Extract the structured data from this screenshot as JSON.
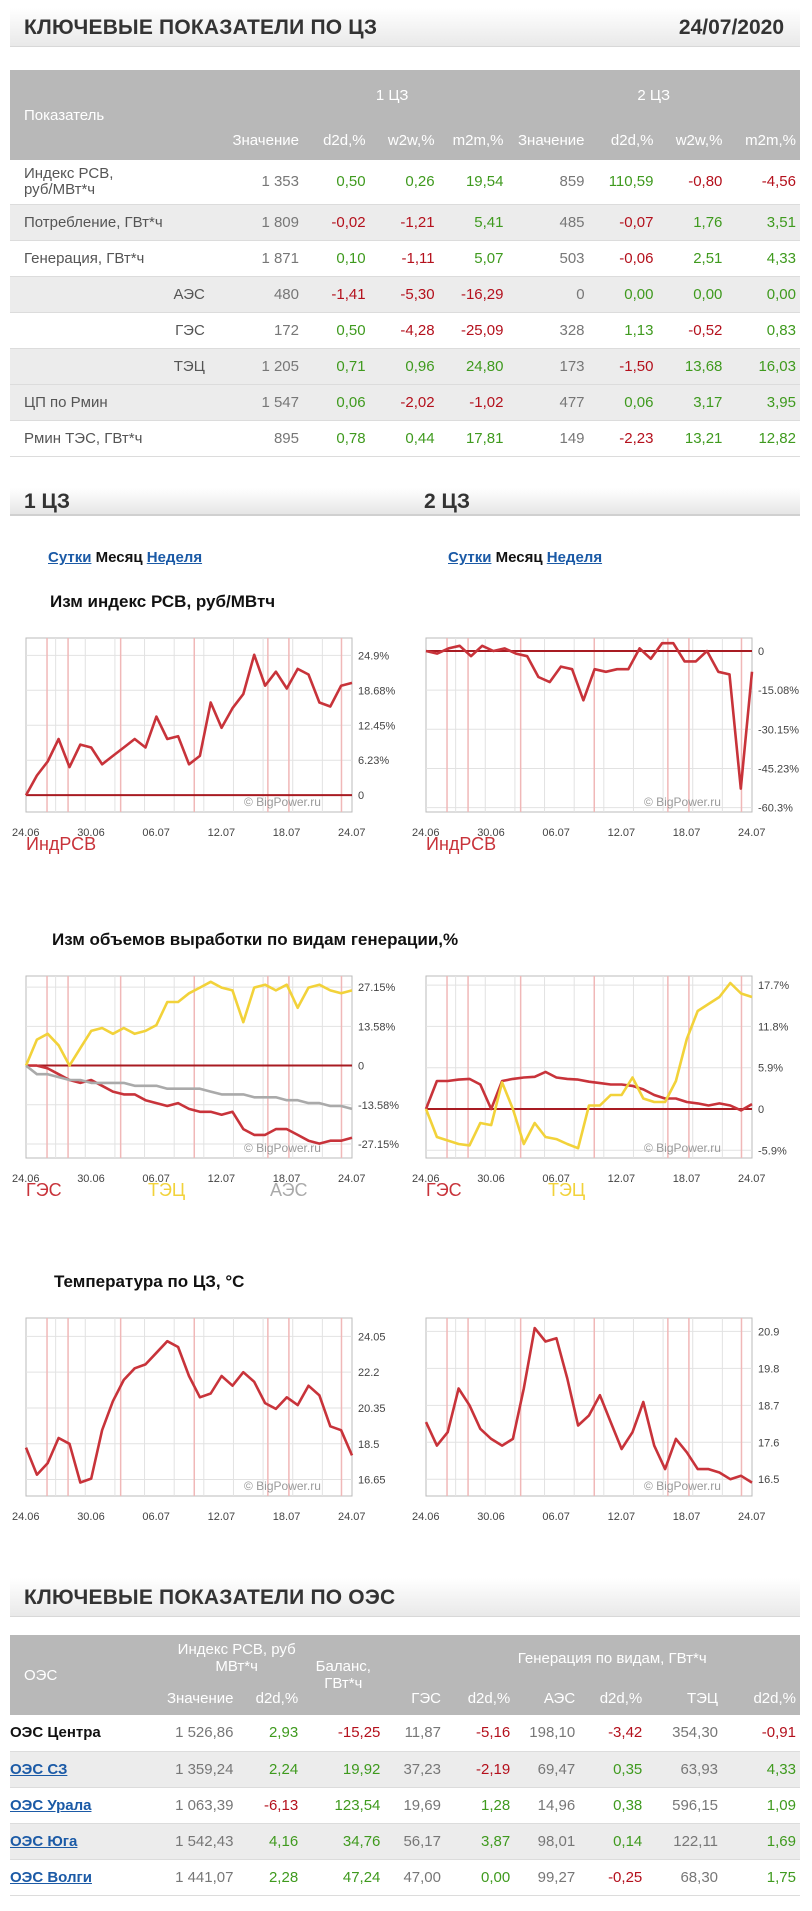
{
  "header": {
    "title": "КЛЮЧЕВЫЕ ПОКАЗАТЕЛИ ПО ЦЗ",
    "date": "24/07/2020"
  },
  "kp_table": {
    "col_indicator": "Показатель",
    "zone1": "1 ЦЗ",
    "zone2": "2 ЦЗ",
    "sub": [
      "Значение",
      "d2d,%",
      "w2w,%",
      "m2m,%"
    ],
    "rows": [
      {
        "label": "Индекс РСВ, руб/МВт*ч",
        "l1": "Индекс РСВ,",
        "l2": "руб/МВт*ч",
        "indent": false,
        "z1": [
          "1 353",
          "0,50",
          "0,26",
          "19,54"
        ],
        "z2": [
          "859",
          "110,59",
          "-0,80",
          "-4,56"
        ]
      },
      {
        "label": "Потребление, ГВт*ч",
        "indent": false,
        "z1": [
          "1 809",
          "-0,02",
          "-1,21",
          "5,41"
        ],
        "z2": [
          "485",
          "-0,07",
          "1,76",
          "3,51"
        ]
      },
      {
        "label": "Генерация, ГВт*ч",
        "indent": false,
        "z1": [
          "1 871",
          "0,10",
          "-1,11",
          "5,07"
        ],
        "z2": [
          "503",
          "-0,06",
          "2,51",
          "4,33"
        ]
      },
      {
        "label": "АЭС",
        "indent": true,
        "z1": [
          "480",
          "-1,41",
          "-5,30",
          "-16,29"
        ],
        "z2": [
          "0",
          "0,00",
          "0,00",
          "0,00"
        ]
      },
      {
        "label": "ГЭС",
        "indent": true,
        "z1": [
          "172",
          "0,50",
          "-4,28",
          "-25,09"
        ],
        "z2": [
          "328",
          "1,13",
          "-0,52",
          "0,83"
        ]
      },
      {
        "label": "ТЭЦ",
        "indent": true,
        "z1": [
          "1 205",
          "0,71",
          "0,96",
          "24,80"
        ],
        "z2": [
          "173",
          "-1,50",
          "13,68",
          "16,03"
        ]
      },
      {
        "label": "ЦП по Рмин",
        "indent": false,
        "z1": [
          "1 547",
          "0,06",
          "-2,02",
          "-1,02"
        ],
        "z2": [
          "477",
          "0,06",
          "3,17",
          "3,95"
        ]
      },
      {
        "label": "Рмин ТЭС, ГВт*ч",
        "indent": false,
        "z1": [
          "895",
          "0,78",
          "0,44",
          "17,81"
        ],
        "z2": [
          "149",
          "-2,23",
          "13,21",
          "12,82"
        ]
      }
    ]
  },
  "zones": {
    "z1_title": "1 ЦЗ",
    "z2_title": "2 ЦЗ",
    "tabs": [
      "Сутки",
      "Месяц",
      "Неделя"
    ],
    "active_tab": "Месяц"
  },
  "chart_titles": {
    "rsv": "Изм индекс РСВ, руб/МВтч",
    "gen": "Изм объемов выработки по видам генерации,%",
    "temp": "Температура по ЦЗ, °C"
  },
  "watermark": "© BigPower.ru",
  "colors": {
    "red": "#c8333a",
    "yellow": "#f2d23a",
    "gray": "#aaaaaa",
    "green": "#3f9a1e",
    "darkred": "#b4101c",
    "grid": "#e2e2e2",
    "vline": "#f0b8b8"
  },
  "x_ticks": [
    "24.06",
    "30.06",
    "06.07",
    "12.07",
    "18.07",
    "24.07"
  ],
  "chart_data": [
    {
      "id": "rsv1",
      "type": "line",
      "title": "Изм индекс РСВ, руб/МВтч",
      "ylim": [
        -3,
        28
      ],
      "yticks": [
        24.9,
        18.68,
        12.45,
        6.23,
        0
      ],
      "ytick_labels": [
        "24.9%",
        "18.68%",
        "12.45%",
        "6.23%",
        "0"
      ],
      "zero_line": 0,
      "legend": [
        {
          "name": "ИндРСВ",
          "color": "#c8333a"
        }
      ],
      "series": [
        {
          "name": "ИндРСВ",
          "color": "#c8333a",
          "values": [
            0,
            3.5,
            6,
            10,
            5,
            9,
            8.5,
            5.5,
            7,
            8.5,
            10,
            8.5,
            14,
            10,
            10.5,
            5.5,
            7,
            16.5,
            12,
            15.5,
            18,
            25,
            19.5,
            22,
            19,
            22.5,
            21.5,
            16.5,
            15.8,
            19.5,
            20
          ]
        }
      ]
    },
    {
      "id": "rsv2",
      "type": "line",
      "title": "Изм индекс РСВ, руб/МВтч",
      "ylim": [
        -62,
        5
      ],
      "yticks": [
        0,
        -15.08,
        -30.15,
        -45.23,
        -60.3
      ],
      "ytick_labels": [
        "0",
        "-15.08%",
        "-30.15%",
        "-45.23%",
        "-60.3%"
      ],
      "zero_line": 0,
      "legend": [
        {
          "name": "ИндРСВ",
          "color": "#c8333a"
        }
      ],
      "series": [
        {
          "name": "ИндРСВ",
          "color": "#c8333a",
          "values": [
            0,
            -1,
            1,
            2,
            -2,
            2,
            0,
            1,
            -1,
            -2,
            -10,
            -12,
            -6,
            -7,
            -19,
            -7,
            -8,
            -7,
            -7,
            1,
            -3,
            3,
            3,
            -4,
            -4,
            0,
            -8,
            -9,
            -53,
            -8
          ]
        }
      ]
    },
    {
      "id": "gen1",
      "type": "line",
      "title": "Изм объемов выработки по видам генерации,%",
      "ylim": [
        -32,
        31
      ],
      "yticks": [
        27.15,
        13.58,
        0,
        -13.58,
        -27.15
      ],
      "ytick_labels": [
        "27.15%",
        "13.58%",
        "0",
        "-13.58%",
        "-27.15%"
      ],
      "zero_line": 0,
      "legend": [
        {
          "name": "ГЭС",
          "color": "#c8333a"
        },
        {
          "name": "ТЭЦ",
          "color": "#f2d23a"
        },
        {
          "name": "АЭС",
          "color": "#aaaaaa"
        }
      ],
      "series": [
        {
          "name": "ГЭС",
          "color": "#c8333a",
          "values": [
            0,
            0,
            -1,
            -3,
            -5,
            -6,
            -5,
            -7,
            -9,
            -10,
            -10,
            -12,
            -13,
            -14,
            -13,
            -15,
            -16,
            -16,
            -17,
            -16,
            -22,
            -24,
            -24,
            -22,
            -22,
            -24,
            -26,
            -27,
            -26,
            -26,
            -25
          ]
        },
        {
          "name": "ТЭЦ",
          "color": "#f2d23a",
          "values": [
            0,
            9,
            11,
            7,
            0,
            6,
            12,
            13,
            11,
            13,
            11,
            12,
            14,
            22,
            22,
            25,
            27,
            29,
            27,
            26,
            15,
            27,
            28,
            26,
            28,
            20,
            27,
            28,
            26,
            25,
            26
          ]
        },
        {
          "name": "АЭС",
          "color": "#aaaaaa",
          "values": [
            0,
            -3,
            -3,
            -4,
            -5,
            -5,
            -6,
            -6,
            -6,
            -6,
            -7,
            -7,
            -7,
            -8,
            -8,
            -8,
            -8,
            -9,
            -10,
            -10,
            -10,
            -11,
            -11,
            -11,
            -12,
            -12,
            -13,
            -13,
            -14,
            -14,
            -15
          ]
        }
      ]
    },
    {
      "id": "gen2",
      "type": "line",
      "title": "Изм объемов выработки по видам генерации,%",
      "ylim": [
        -7,
        19
      ],
      "yticks": [
        17.7,
        11.8,
        5.9,
        0,
        -5.9
      ],
      "ytick_labels": [
        "17.7%",
        "11.8%",
        "5.9%",
        "0",
        "-5.9%"
      ],
      "zero_line": 0,
      "legend": [
        {
          "name": "ГЭС",
          "color": "#c8333a"
        },
        {
          "name": "ТЭЦ",
          "color": "#f2d23a"
        }
      ],
      "series": [
        {
          "name": "ГЭС",
          "color": "#c8333a",
          "values": [
            0,
            4,
            4,
            4.2,
            4.3,
            3.5,
            0,
            4,
            4.3,
            4.5,
            4.6,
            5.3,
            4.5,
            4.3,
            4.2,
            3.9,
            3.7,
            3.5,
            3.5,
            3.3,
            2.8,
            2,
            1.5,
            1.5,
            1,
            0.8,
            0.5,
            0.8,
            0.5,
            -0.2,
            0.7
          ]
        },
        {
          "name": "ТЭЦ",
          "color": "#f2d23a",
          "values": [
            0,
            -4,
            -4.5,
            -5,
            -5.2,
            -2,
            -2.3,
            3.8,
            0,
            -5,
            -2,
            -4,
            -4.3,
            -5,
            -5.6,
            0.5,
            0.5,
            2,
            2,
            4.5,
            1.5,
            1,
            1,
            4,
            10,
            14,
            15,
            16,
            18,
            16.5,
            16
          ]
        }
      ]
    },
    {
      "id": "temp1",
      "type": "line",
      "title": "Температура по ЦЗ, °C",
      "ylim": [
        15.8,
        25
      ],
      "yticks": [
        24.05,
        22.2,
        20.35,
        18.5,
        16.65
      ],
      "ytick_labels": [
        "24.05",
        "22.2",
        "20.35",
        "18.5",
        "16.65"
      ],
      "zero_line": null,
      "legend": [],
      "series": [
        {
          "name": "",
          "color": "#c8333a",
          "values": [
            18.3,
            16.9,
            17.5,
            18.8,
            18.5,
            16.5,
            16.7,
            19.2,
            20.7,
            21.8,
            22.4,
            22.6,
            23.2,
            23.8,
            23.5,
            22.0,
            20.9,
            21.1,
            22.0,
            21.5,
            22.2,
            21.7,
            20.6,
            20.3,
            20.9,
            20.5,
            21.5,
            21.0,
            19.4,
            19.2,
            17.9
          ]
        }
      ]
    },
    {
      "id": "temp2",
      "type": "line",
      "title": "Температура по ЦЗ, °C",
      "ylim": [
        16,
        21.3
      ],
      "yticks": [
        20.9,
        19.8,
        18.7,
        17.6,
        16.5
      ],
      "ytick_labels": [
        "20.9",
        "19.8",
        "18.7",
        "17.6",
        "16.5"
      ],
      "zero_line": null,
      "legend": [],
      "series": [
        {
          "name": "",
          "color": "#c8333a",
          "values": [
            18.2,
            17.5,
            17.9,
            19.2,
            18.7,
            18.0,
            17.7,
            17.5,
            17.7,
            19.2,
            21.0,
            20.6,
            20.7,
            19.5,
            18.1,
            18.4,
            19.0,
            18.2,
            17.4,
            17.9,
            18.8,
            17.5,
            16.8,
            17.7,
            17.3,
            16.8,
            16.8,
            16.7,
            16.5,
            16.6,
            16.4
          ]
        }
      ]
    }
  ],
  "oes_header": {
    "title": "КЛЮЧЕВЫЕ ПОКАЗАТЕЛИ ПО ОЭС"
  },
  "oes_table": {
    "col_oes": "ОЭС",
    "index_l1": "Индекс РСВ, руб",
    "index_l2": "МВт*ч",
    "balance_l1": "Баланс,",
    "balance_l2": "ГВт*ч",
    "gen_header": "Генерация по видам, ГВт*ч",
    "sub": [
      "Значение",
      "d2d,%",
      "ГЭС",
      "d2d,%",
      "АЭС",
      "d2d,%",
      "ТЭЦ",
      "d2d,%"
    ],
    "rows": [
      {
        "name": "ОЭС Центра",
        "link": false,
        "vals": [
          "1 526,86",
          "2,93",
          "-15,25",
          "11,87",
          "-5,16",
          "198,10",
          "-3,42",
          "354,30",
          "-0,91"
        ]
      },
      {
        "name": "ОЭС СЗ",
        "link": true,
        "vals": [
          "1 359,24",
          "2,24",
          "19,92",
          "37,23",
          "-2,19",
          "69,47",
          "0,35",
          "63,93",
          "4,33"
        ]
      },
      {
        "name": "ОЭС Урала",
        "link": true,
        "vals": [
          "1 063,39",
          "-6,13",
          "123,54",
          "19,69",
          "1,28",
          "14,96",
          "0,38",
          "596,15",
          "1,09"
        ]
      },
      {
        "name": "ОЭС Юга",
        "link": true,
        "vals": [
          "1 542,43",
          "4,16",
          "34,76",
          "56,17",
          "3,87",
          "98,01",
          "0,14",
          "122,11",
          "1,69"
        ]
      },
      {
        "name": "ОЭС Волги",
        "link": true,
        "vals": [
          "1 441,07",
          "2,28",
          "47,24",
          "47,00",
          "0,00",
          "99,27",
          "-0,25",
          "68,30",
          "1,75"
        ]
      }
    ]
  }
}
